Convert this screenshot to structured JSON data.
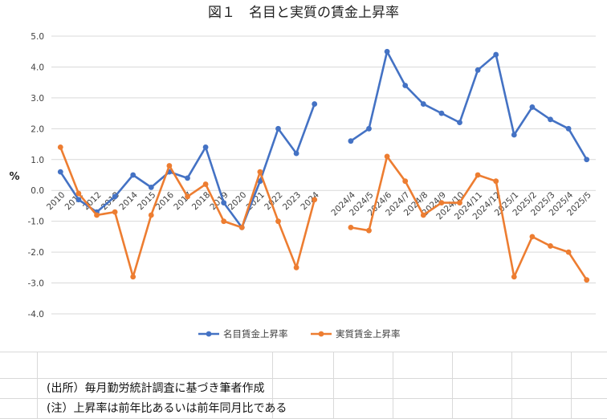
{
  "chart_data": {
    "type": "line",
    "title": "図１　名目と実質の賃金上昇率",
    "ylabel": "%",
    "xlabel": "",
    "ylim": [
      -4.0,
      5.0
    ],
    "ytick_step": 1.0,
    "grid": true,
    "legend_position": "bottom",
    "categories": [
      "2010",
      "2011",
      "2012",
      "2013",
      "2014",
      "2015",
      "2016",
      "2017",
      "2018",
      "2019",
      "2020",
      "2021",
      "2022",
      "2023",
      "2024",
      "",
      "2024/4",
      "2024/5",
      "2024/6",
      "2024/7",
      "2024/8",
      "2024/9",
      "2024/10",
      "2024/11",
      "2024/12",
      "2025/1",
      "2025/2",
      "2025/3",
      "2025/4",
      "2025/5"
    ],
    "yticks": [
      "5.0",
      "4.0",
      "3.0",
      "2.0",
      "1.0",
      "0.0",
      "-1.0",
      "-2.0",
      "-3.0",
      "-4.0"
    ],
    "series": [
      {
        "name": "名目賃金上昇率",
        "color": "#4472C4",
        "values": [
          0.6,
          -0.3,
          -0.7,
          -0.2,
          0.5,
          0.1,
          0.6,
          0.4,
          1.4,
          -0.4,
          -1.2,
          0.3,
          2.0,
          1.2,
          2.8,
          null,
          1.6,
          2.0,
          4.5,
          3.4,
          2.8,
          2.5,
          2.2,
          3.9,
          4.4,
          1.8,
          2.7,
          2.3,
          2.0,
          1.0
        ]
      },
      {
        "name": "実質賃金上昇率",
        "color": "#ED7D31",
        "values": [
          1.4,
          -0.1,
          -0.8,
          -0.7,
          -2.8,
          -0.8,
          0.8,
          -0.2,
          0.2,
          -1.0,
          -1.2,
          0.6,
          -1.0,
          -2.5,
          -0.3,
          null,
          -1.2,
          -1.3,
          1.1,
          0.3,
          -0.8,
          -0.4,
          -0.4,
          0.5,
          0.3,
          -2.8,
          -1.5,
          -1.8,
          -2.0,
          -2.9
        ]
      }
    ]
  },
  "notes": {
    "source": "(出所）毎月勤労統計調査に基づき筆者作成",
    "note": "(注）上昇率は前年比あるいは前年同月比である"
  }
}
